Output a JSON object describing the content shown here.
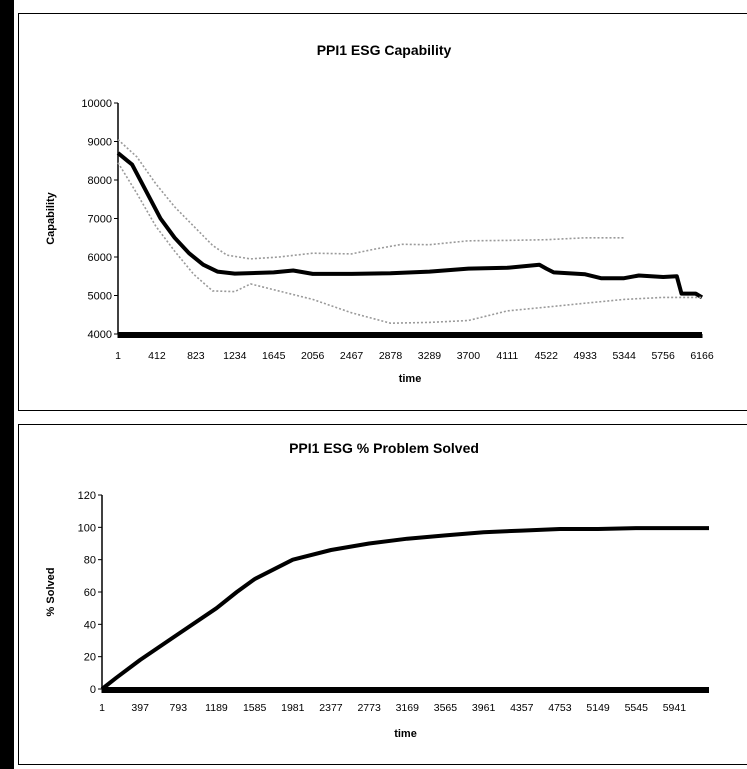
{
  "chart_data": [
    {
      "type": "line",
      "title": "PPI1 ESG Capability",
      "xlabel": "time",
      "ylabel": "Capability",
      "categories": [
        "1",
        "412",
        "823",
        "1234",
        "1645",
        "2056",
        "2467",
        "2878",
        "3289",
        "3700",
        "4111",
        "4522",
        "4933",
        "5344",
        "5756",
        "6166"
      ],
      "xlim": [
        1,
        6166
      ],
      "ylim": [
        4000,
        10000
      ],
      "yticks": [
        4000,
        5000,
        6000,
        7000,
        8000,
        9000,
        10000
      ],
      "grid": false,
      "series": [
        {
          "style": "thick-black",
          "points": [
            [
              1,
              8700
            ],
            [
              150,
              8400
            ],
            [
              300,
              7700
            ],
            [
              450,
              7000
            ],
            [
              600,
              6500
            ],
            [
              750,
              6100
            ],
            [
              900,
              5800
            ],
            [
              1050,
              5620
            ],
            [
              1234,
              5570
            ],
            [
              1645,
              5600
            ],
            [
              1850,
              5650
            ],
            [
              2056,
              5560
            ],
            [
              2467,
              5560
            ],
            [
              2878,
              5580
            ],
            [
              3289,
              5620
            ],
            [
              3700,
              5700
            ],
            [
              4111,
              5720
            ],
            [
              4450,
              5800
            ],
            [
              4522,
              5700
            ],
            [
              4600,
              5600
            ],
            [
              4933,
              5550
            ],
            [
              5100,
              5450
            ],
            [
              5344,
              5450
            ],
            [
              5500,
              5520
            ],
            [
              5756,
              5480
            ],
            [
              5900,
              5500
            ],
            [
              5950,
              5050
            ],
            [
              6100,
              5050
            ],
            [
              6166,
              4950
            ]
          ]
        },
        {
          "style": "upper-dotted",
          "points": [
            [
              1,
              9050
            ],
            [
              200,
              8600
            ],
            [
              400,
              7900
            ],
            [
              600,
              7300
            ],
            [
              800,
              6800
            ],
            [
              1000,
              6300
            ],
            [
              1150,
              6050
            ],
            [
              1400,
              5950
            ],
            [
              1700,
              6000
            ],
            [
              2056,
              6100
            ],
            [
              2467,
              6080
            ],
            [
              2700,
              6200
            ],
            [
              3000,
              6330
            ],
            [
              3289,
              6320
            ],
            [
              3700,
              6420
            ],
            [
              4111,
              6430
            ],
            [
              4522,
              6450
            ],
            [
              4933,
              6500
            ],
            [
              5344,
              6500
            ]
          ]
        },
        {
          "style": "lower-dotted",
          "points": [
            [
              1,
              8450
            ],
            [
              200,
              7650
            ],
            [
              400,
              6800
            ],
            [
              600,
              6150
            ],
            [
              800,
              5550
            ],
            [
              1000,
              5120
            ],
            [
              1234,
              5100
            ],
            [
              1400,
              5300
            ],
            [
              1645,
              5150
            ],
            [
              2056,
              4900
            ],
            [
              2467,
              4550
            ],
            [
              2878,
              4280
            ],
            [
              3289,
              4300
            ],
            [
              3700,
              4350
            ],
            [
              4111,
              4600
            ],
            [
              4522,
              4700
            ],
            [
              4933,
              4800
            ],
            [
              5344,
              4900
            ],
            [
              5756,
              4950
            ],
            [
              6166,
              4950
            ]
          ]
        }
      ]
    },
    {
      "type": "line",
      "title": "PPI1 ESG % Problem Solved",
      "xlabel": "time",
      "ylabel": "% Solved",
      "categories": [
        "1",
        "397",
        "793",
        "1189",
        "1585",
        "1981",
        "2377",
        "2773",
        "3169",
        "3565",
        "3961",
        "4357",
        "4753",
        "5149",
        "5545",
        "5941"
      ],
      "xlim": [
        1,
        6300
      ],
      "ylim": [
        0,
        120
      ],
      "yticks": [
        0,
        20,
        40,
        60,
        80,
        100,
        120
      ],
      "grid": false,
      "series": [
        {
          "style": "thick-black",
          "points": [
            [
              1,
              0
            ],
            [
              150,
              7
            ],
            [
              397,
              18
            ],
            [
              793,
              34
            ],
            [
              1189,
              50
            ],
            [
              1400,
              60
            ],
            [
              1585,
              68
            ],
            [
              1981,
              80
            ],
            [
              2377,
              86
            ],
            [
              2773,
              90
            ],
            [
              3169,
              93
            ],
            [
              3565,
              95
            ],
            [
              3961,
              97
            ],
            [
              4357,
              98
            ],
            [
              4753,
              99
            ],
            [
              5149,
              99
            ],
            [
              5545,
              99.5
            ],
            [
              5941,
              99.5
            ],
            [
              6300,
              99.5
            ]
          ]
        }
      ]
    }
  ]
}
